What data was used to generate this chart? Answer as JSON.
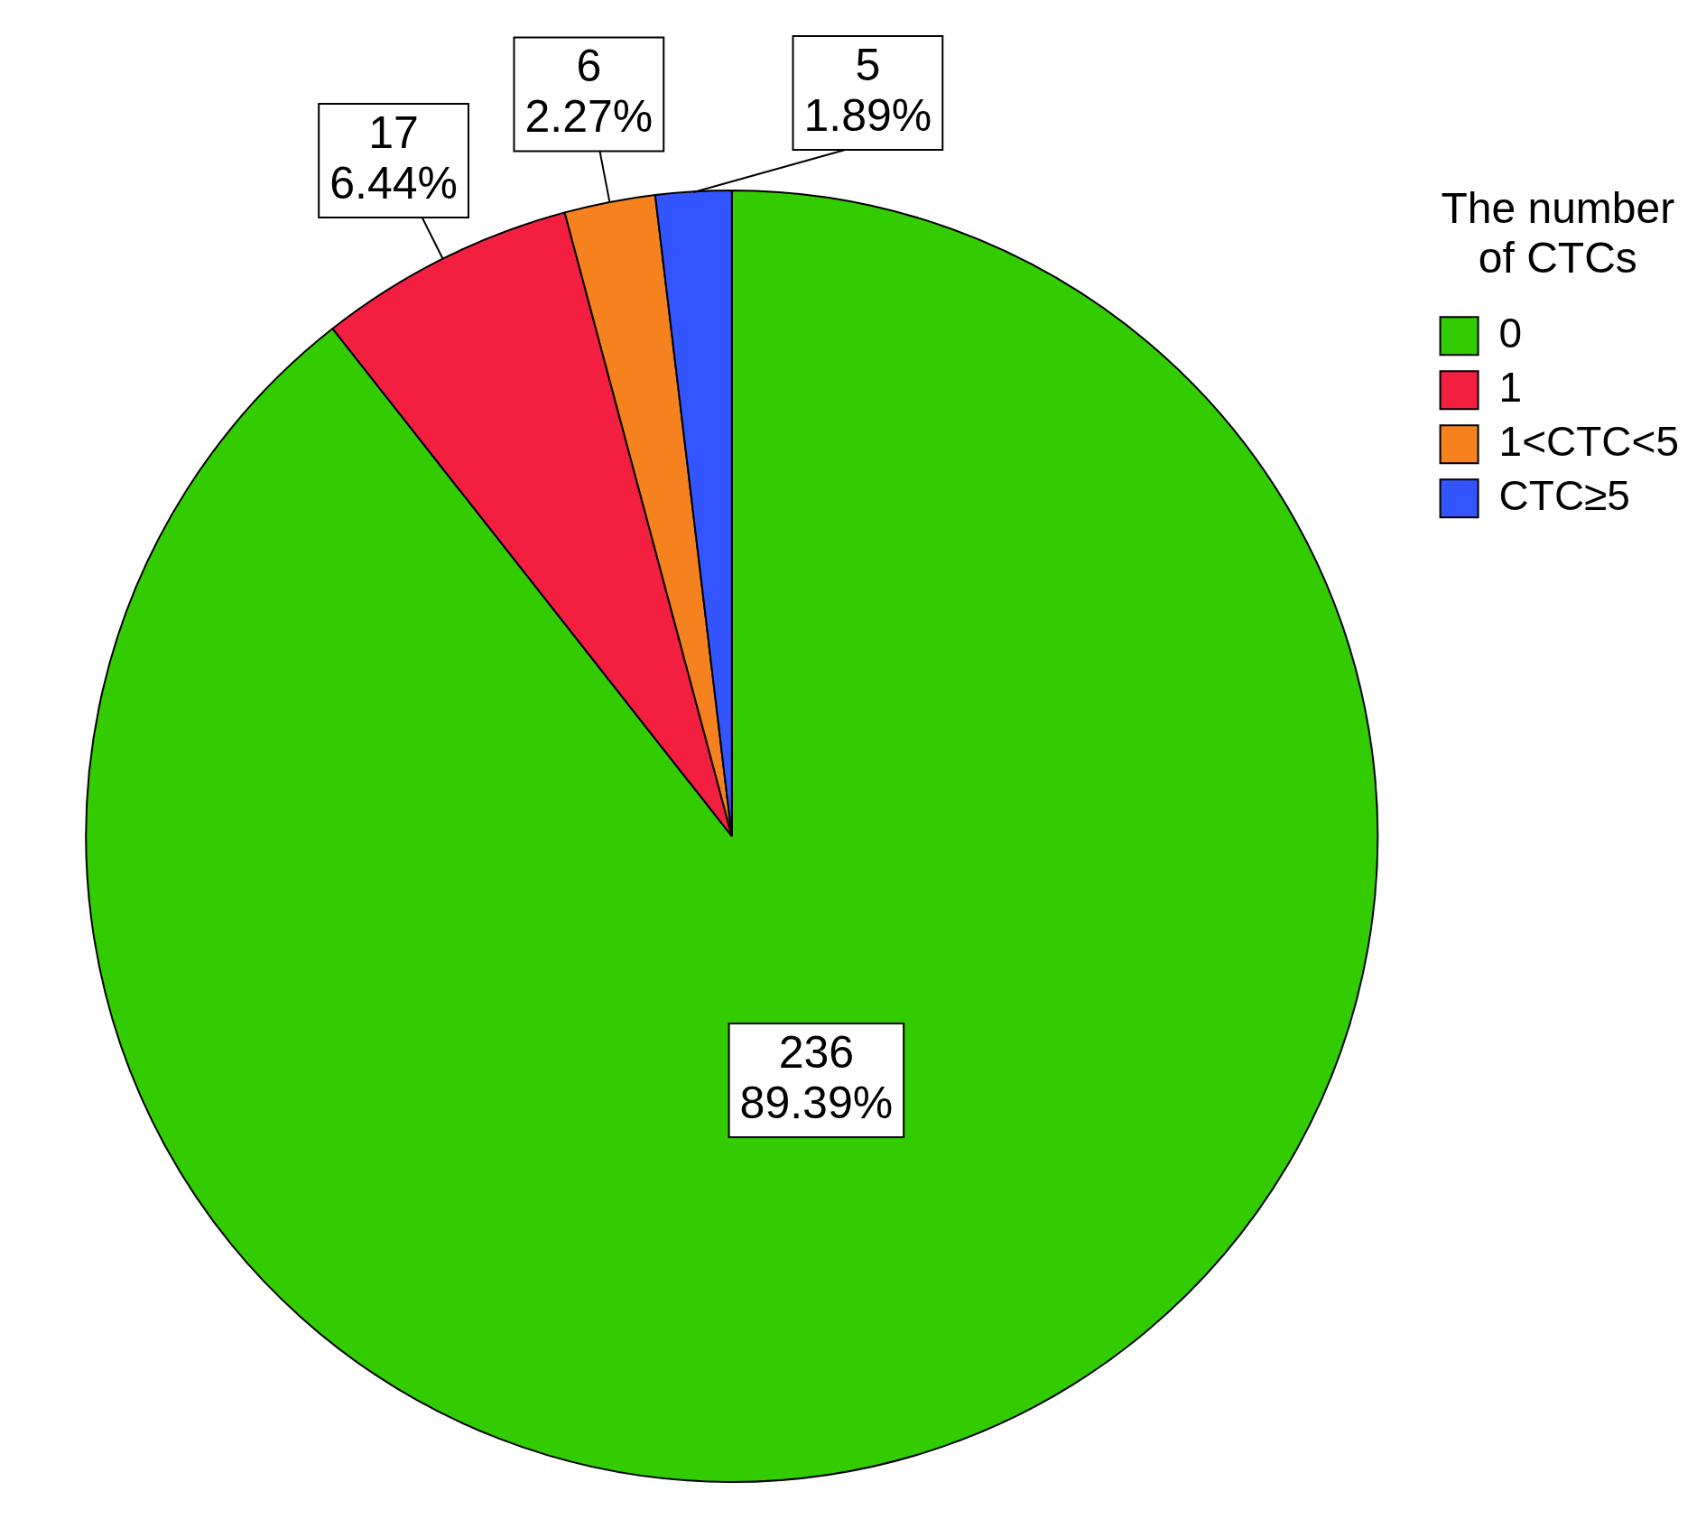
{
  "chart_data": {
    "type": "pie",
    "legend_title": "The number of CTCs",
    "legend": "top right",
    "categories": [
      "0",
      "1",
      "1<CTC<5",
      "CTC≥5"
    ],
    "values": [
      236,
      17,
      6,
      5
    ],
    "colors": [
      "#33cc00",
      "#f21f41",
      "#f5821f",
      "#3355ff"
    ],
    "value_labels": [
      "236\n89.39%",
      "17\n6.44%",
      "6\n2.27%",
      "5\n1.89%"
    ]
  }
}
